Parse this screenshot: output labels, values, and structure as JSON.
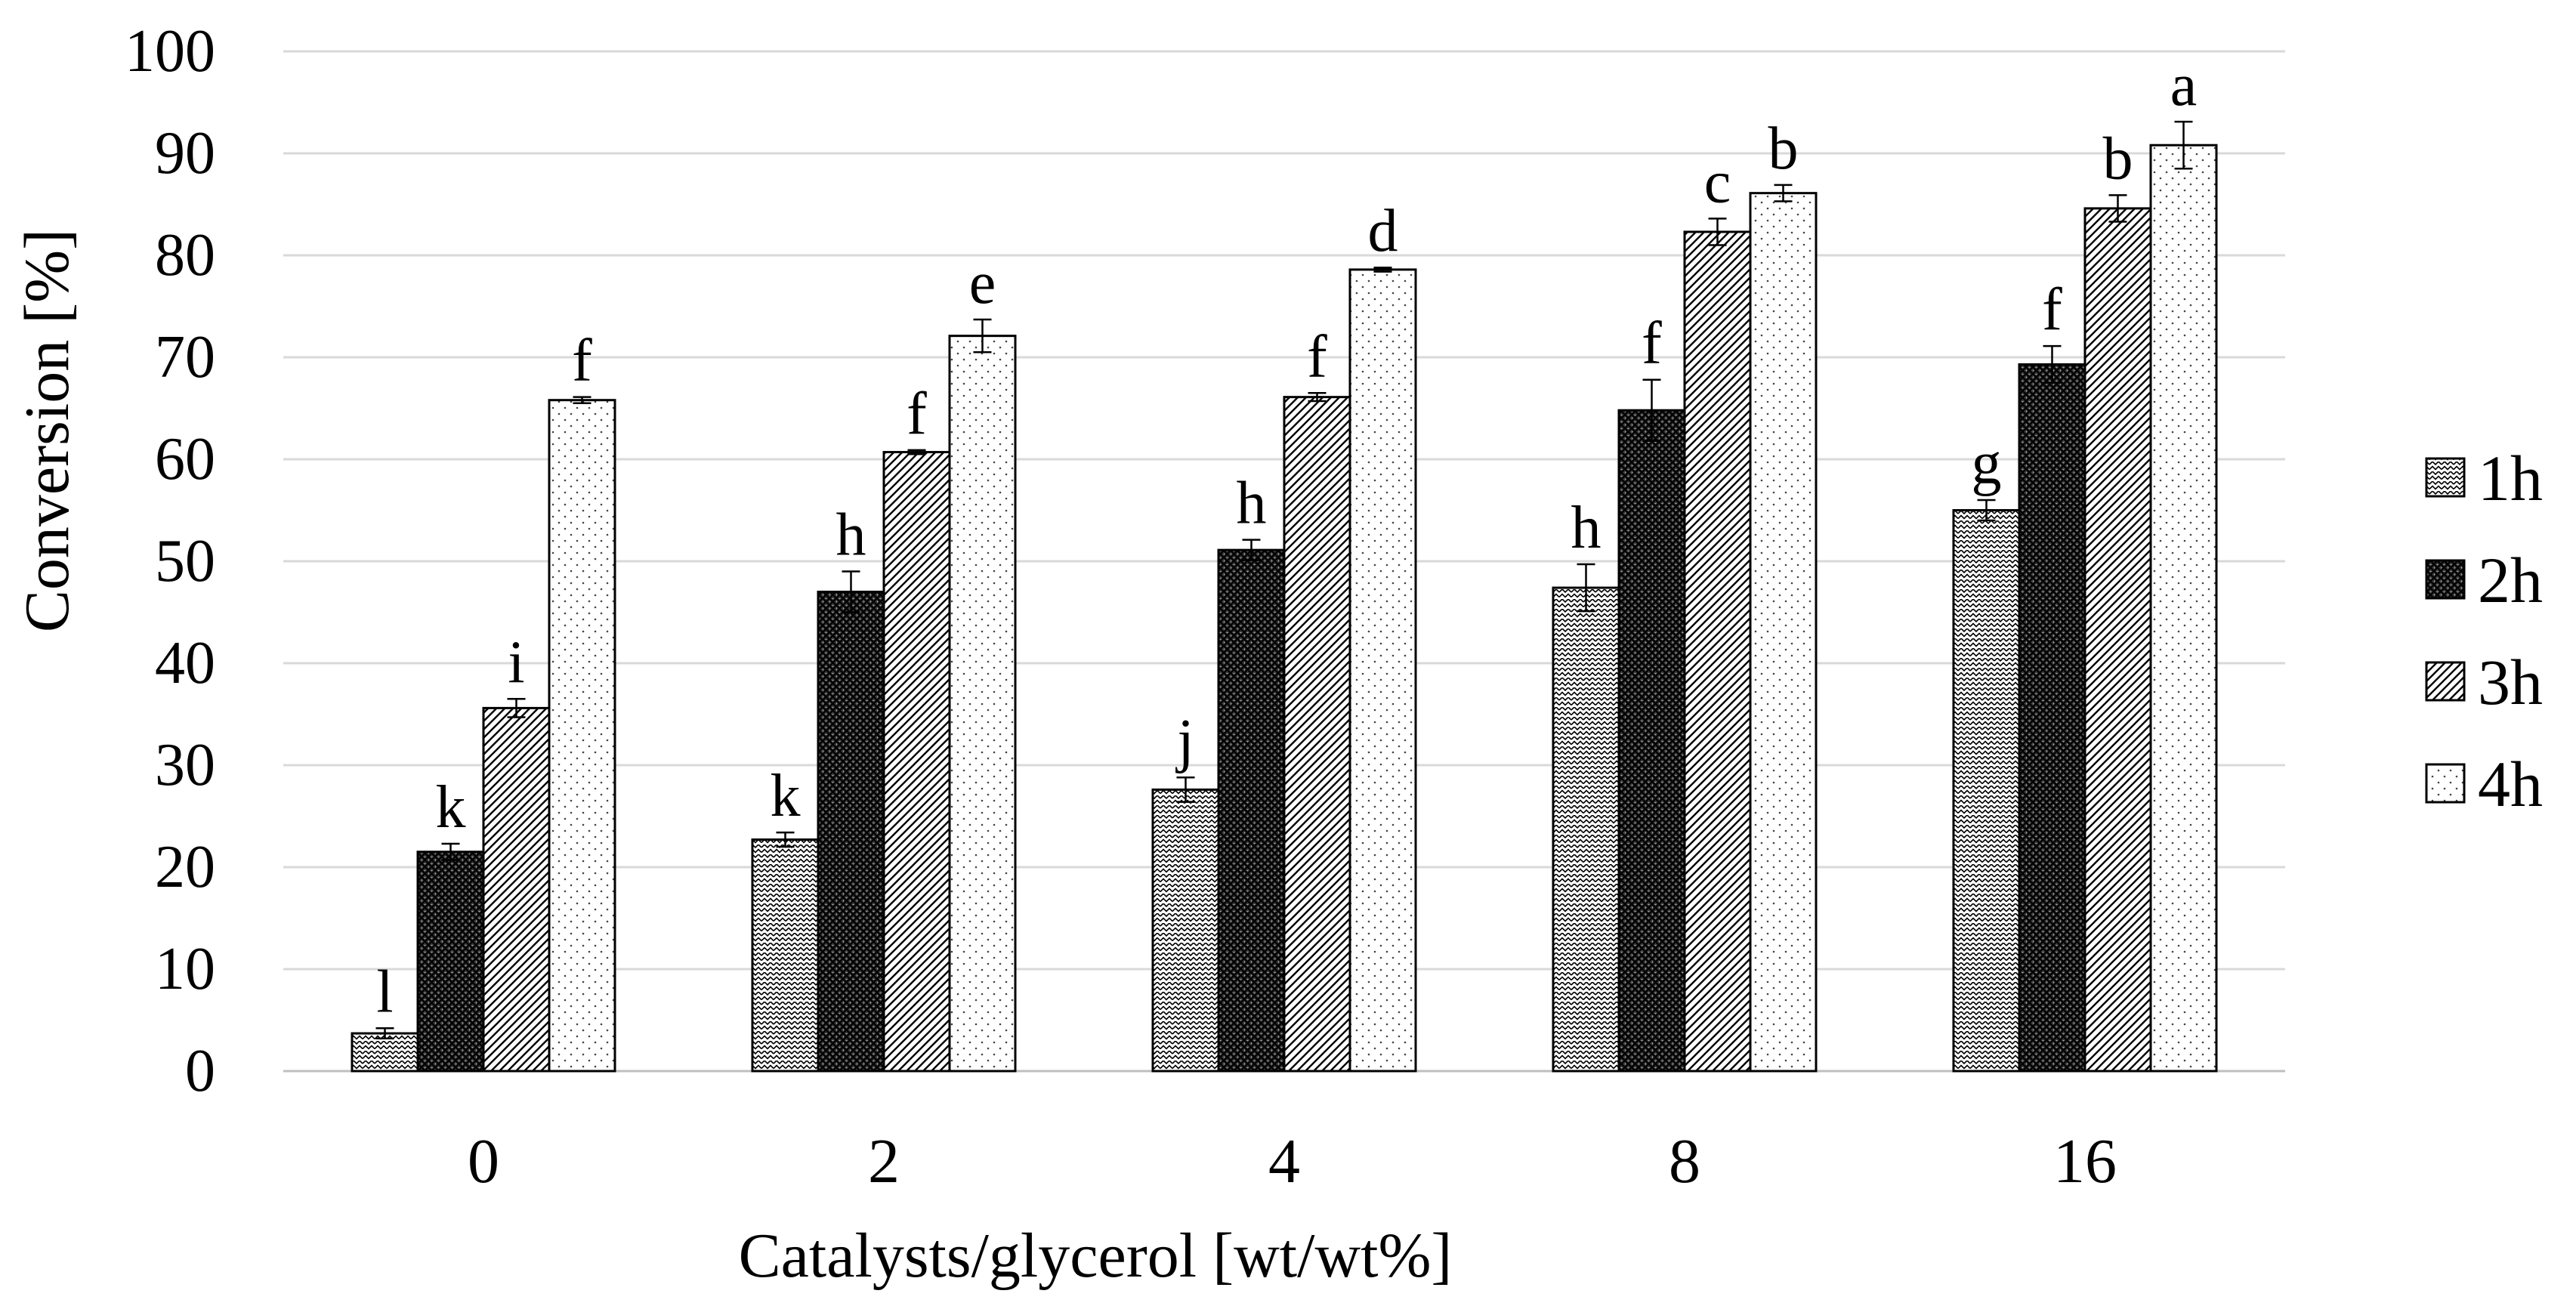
{
  "chart_data": {
    "type": "bar",
    "title": "",
    "xlabel": "Catalysts/glycerol  [wt/wt%]",
    "ylabel": "Conversion  [%]",
    "ylim": [
      0,
      100
    ],
    "ytick_step": 10,
    "categories": [
      "0",
      "2",
      "4",
      "8",
      "16"
    ],
    "grid": true,
    "legend_position": "right",
    "series": [
      {
        "name": "1h",
        "pattern": "zigzag",
        "values": [
          3.7,
          22.7,
          27.6,
          47.4,
          55.0
        ],
        "errors": [
          0.5,
          0.7,
          1.2,
          2.3,
          1.0
        ],
        "letters": [
          "l",
          "k",
          "j",
          "h",
          "g"
        ]
      },
      {
        "name": "2h",
        "pattern": "crosshatch",
        "values": [
          21.5,
          47.0,
          51.1,
          64.8,
          69.3
        ],
        "errors": [
          0.8,
          2.0,
          1.0,
          3.0,
          1.8
        ],
        "letters": [
          "k",
          "h",
          "h",
          "f",
          "f"
        ]
      },
      {
        "name": "3h",
        "pattern": "diagonal",
        "values": [
          35.6,
          60.7,
          66.1,
          82.3,
          84.6
        ],
        "errors": [
          0.9,
          0.2,
          0.4,
          1.3,
          1.3
        ],
        "letters": [
          "i",
          "f",
          "f",
          "c",
          "b"
        ]
      },
      {
        "name": "4h",
        "pattern": "dots",
        "values": [
          65.8,
          72.1,
          78.6,
          86.1,
          90.8
        ],
        "errors": [
          0.3,
          1.6,
          0.2,
          0.8,
          2.3
        ],
        "letters": [
          "f",
          "e",
          "d",
          "b",
          "a"
        ]
      }
    ]
  },
  "colors": {
    "bar_stroke": "#000000",
    "grid": "#d9d9d9",
    "axis": "#bfbfbf",
    "pattern_ink": "#000000",
    "background": "#ffffff"
  }
}
